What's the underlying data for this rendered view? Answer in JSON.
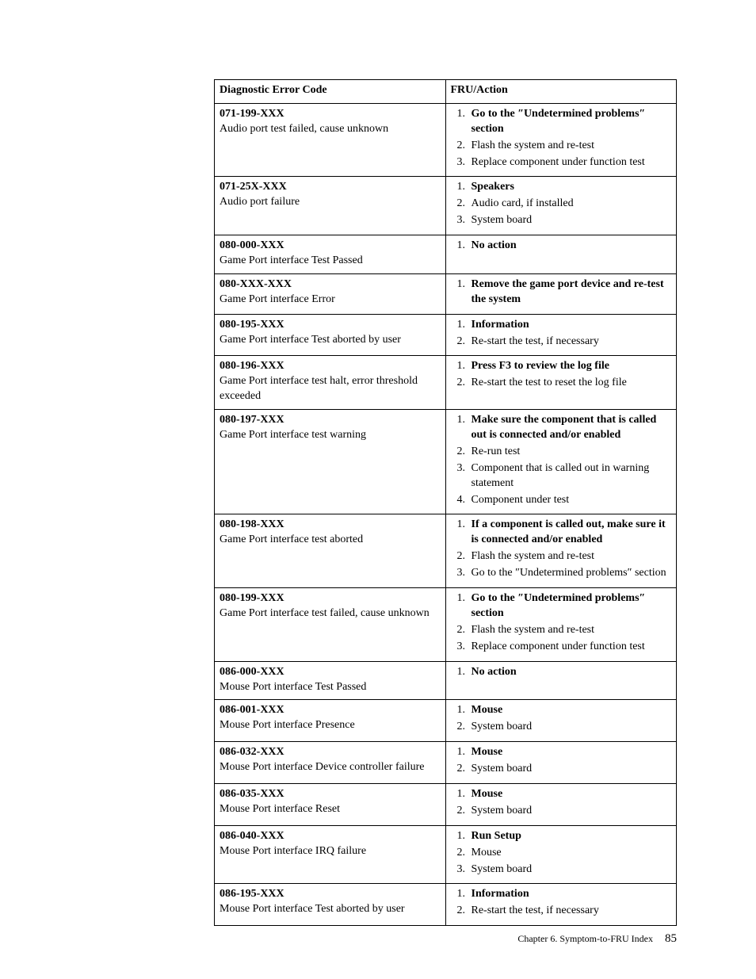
{
  "table": {
    "header": {
      "col1": "Diagnostic Error Code",
      "col2": "FRU/Action"
    },
    "rows": [
      {
        "code": "071-199-XXX",
        "desc": "Audio port test failed, cause unknown",
        "actions": [
          {
            "text": "Go to the ″Undetermined problems″ section",
            "bold": true
          },
          {
            "text": "Flash the system and re-test",
            "bold": false
          },
          {
            "text": "Replace component under function test",
            "bold": false
          }
        ]
      },
      {
        "code": "071-25X-XXX",
        "desc": "Audio port failure",
        "actions": [
          {
            "text": "Speakers",
            "bold": true
          },
          {
            "text": "Audio card, if installed",
            "bold": false
          },
          {
            "text": "System board",
            "bold": false
          }
        ]
      },
      {
        "code": "080-000-XXX",
        "desc": "Game Port interface Test Passed",
        "actions": [
          {
            "text": "No action",
            "bold": true
          }
        ]
      },
      {
        "code": "080-XXX-XXX",
        "desc": "Game Port interface Error",
        "actions": [
          {
            "text": "Remove the game port device and re-test the system",
            "bold": true
          }
        ]
      },
      {
        "code": "080-195-XXX",
        "desc": "Game Port interface Test aborted by user",
        "actions": [
          {
            "text": "Information",
            "bold": true
          },
          {
            "text": "Re-start the test, if necessary",
            "bold": false
          }
        ]
      },
      {
        "code": "080-196-XXX",
        "desc": "Game Port interface test halt, error threshold exceeded",
        "actions": [
          {
            "text": "Press F3 to review the log file",
            "bold": true
          },
          {
            "text": "Re-start the test to reset the log file",
            "bold": false
          }
        ]
      },
      {
        "code": "080-197-XXX",
        "desc": "Game Port interface test warning",
        "actions": [
          {
            "text": "Make sure the component that is called out is connected and/or enabled",
            "bold": true
          },
          {
            "text": "Re-run test",
            "bold": false
          },
          {
            "text": "Component that is called out in warning statement",
            "bold": false
          },
          {
            "text": "Component under test",
            "bold": false
          }
        ]
      },
      {
        "code": "080-198-XXX",
        "desc": "Game Port interface test aborted",
        "actions": [
          {
            "text": "If a component is called out, make sure it is connected and/or enabled",
            "bold": true
          },
          {
            "text": "Flash the system and re-test",
            "bold": false
          },
          {
            "text": "Go to the ″Undetermined problems″ section",
            "bold": false
          }
        ]
      },
      {
        "code": "080-199-XXX",
        "desc": "Game Port interface test failed, cause unknown",
        "actions": [
          {
            "text": "Go to the ″Undetermined problems″ section",
            "bold": true
          },
          {
            "text": "Flash the system and re-test",
            "bold": false
          },
          {
            "text": "Replace component under function test",
            "bold": false
          }
        ]
      },
      {
        "code": "086-000-XXX",
        "desc": "Mouse Port interface Test Passed",
        "actions": [
          {
            "text": "No action",
            "bold": true
          }
        ]
      },
      {
        "code": "086-001-XXX",
        "desc": "Mouse Port interface Presence",
        "actions": [
          {
            "text": "Mouse",
            "bold": true
          },
          {
            "text": "System board",
            "bold": false
          }
        ]
      },
      {
        "code": "086-032-XXX",
        "desc": "Mouse Port interface Device controller failure",
        "actions": [
          {
            "text": "Mouse",
            "bold": true
          },
          {
            "text": "System board",
            "bold": false
          }
        ]
      },
      {
        "code": "086-035-XXX",
        "desc": "Mouse Port interface Reset",
        "actions": [
          {
            "text": "Mouse",
            "bold": true
          },
          {
            "text": "System board",
            "bold": false
          }
        ]
      },
      {
        "code": "086-040-XXX",
        "desc": "Mouse Port interface IRQ failure",
        "actions": [
          {
            "text": "Run Setup",
            "bold": true
          },
          {
            "text": "Mouse",
            "bold": false
          },
          {
            "text": "System board",
            "bold": false
          }
        ]
      },
      {
        "code": "086-195-XXX",
        "desc": "Mouse Port interface Test aborted by user",
        "actions": [
          {
            "text": "Information",
            "bold": true
          },
          {
            "text": "Re-start the test, if necessary",
            "bold": false
          }
        ]
      }
    ]
  },
  "footer": {
    "chapter": "Chapter 6. Symptom-to-FRU Index",
    "page": "85"
  }
}
